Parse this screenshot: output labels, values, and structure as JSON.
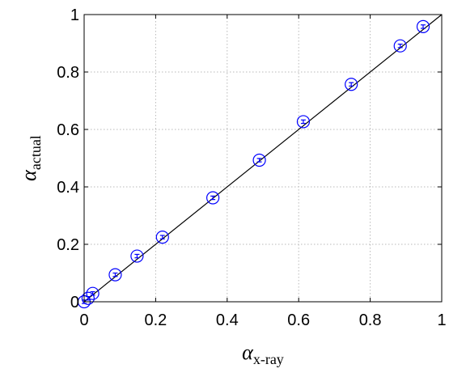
{
  "chart_data": {
    "type": "scatter",
    "title": "",
    "xlabel": {
      "symbol": "α",
      "subscript": "x-ray"
    },
    "ylabel": {
      "symbol": "α",
      "subscript": "actual"
    },
    "xlim": [
      0,
      1
    ],
    "ylim": [
      0,
      1
    ],
    "grid": true,
    "x_ticks": [
      "0",
      "0.2",
      "0.4",
      "0.6",
      "0.8",
      "1"
    ],
    "y_ticks": [
      "0",
      "0.2",
      "0.4",
      "0.6",
      "0.8",
      "1"
    ],
    "x_tick_values": [
      0,
      0.2,
      0.4,
      0.6,
      0.8,
      1
    ],
    "y_tick_values": [
      0,
      0.2,
      0.4,
      0.6,
      0.8,
      1
    ],
    "fit_line": {
      "x": [
        0,
        1
      ],
      "y": [
        0,
        1
      ],
      "color": "#000000"
    },
    "series": [
      {
        "marker": "circle-with-errorbar",
        "color": "#0000ff",
        "points": [
          {
            "x": 0.0,
            "y": 0.0,
            "err": 0.006
          },
          {
            "x": 0.011,
            "y": 0.012,
            "err": 0.006
          },
          {
            "x": 0.024,
            "y": 0.029,
            "err": 0.006
          },
          {
            "x": 0.087,
            "y": 0.094,
            "err": 0.006
          },
          {
            "x": 0.148,
            "y": 0.159,
            "err": 0.006
          },
          {
            "x": 0.219,
            "y": 0.225,
            "err": 0.006
          },
          {
            "x": 0.36,
            "y": 0.362,
            "err": 0.006
          },
          {
            "x": 0.49,
            "y": 0.493,
            "err": 0.006
          },
          {
            "x": 0.613,
            "y": 0.627,
            "err": 0.006
          },
          {
            "x": 0.747,
            "y": 0.757,
            "err": 0.006
          },
          {
            "x": 0.884,
            "y": 0.891,
            "err": 0.006
          },
          {
            "x": 0.948,
            "y": 0.958,
            "err": 0.006
          }
        ]
      }
    ]
  }
}
